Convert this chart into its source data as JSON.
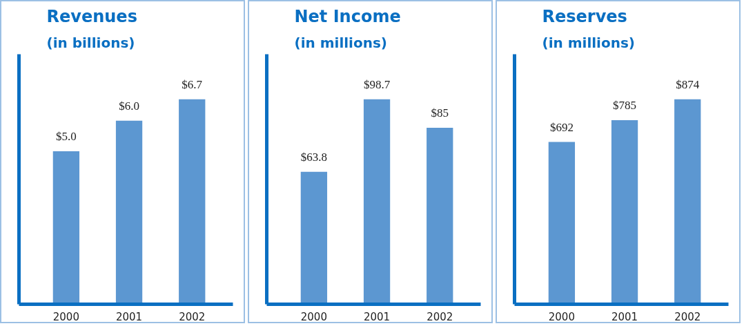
{
  "chart_data": [
    {
      "type": "bar",
      "title": "Revenues",
      "subtitle": "(in billions)",
      "categories": [
        "2000",
        "2001",
        "2002"
      ],
      "values": [
        5.0,
        6.0,
        6.7
      ],
      "value_labels": [
        "$5.0",
        "$6.0",
        "$6.7"
      ],
      "color": "#4a8ccc",
      "tick_labels": "x",
      "grid": false
    },
    {
      "type": "bar",
      "title": "Net Income",
      "subtitle": "(in millions)",
      "categories": [
        "2000",
        "2001",
        "2002"
      ],
      "values": [
        63.8,
        98.7,
        85
      ],
      "value_labels": [
        "$63.8",
        "$98.7",
        "$85"
      ],
      "color": "#4a8ccc",
      "tick_labels": "x",
      "grid": false
    },
    {
      "type": "bar",
      "title": "Reserves",
      "subtitle": "(in millions)",
      "categories": [
        "2000",
        "2001",
        "2002"
      ],
      "values": [
        692,
        785,
        874
      ],
      "value_labels": [
        "$692",
        "$785",
        "$874"
      ],
      "color": "#4a8ccc",
      "tick_labels": "x",
      "grid": false
    }
  ]
}
